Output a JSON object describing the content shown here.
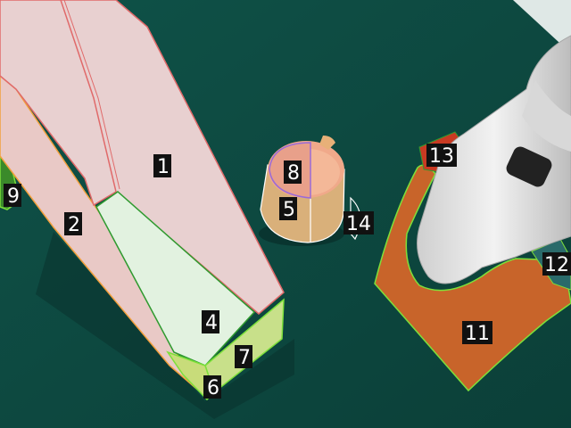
{
  "scene": {
    "description_colors": {
      "table": "#0e4a42",
      "tray": "#e8cfcf",
      "tray_outline": "#e06a6a",
      "tray_side_outline": "#f2a03c",
      "tray_inner": "#dff0dc",
      "inner_outline": "#2f9a2f",
      "tray_base": "#c8e08a",
      "mug": "#d9a67a",
      "mug_outline": "#9a6ad8",
      "stand": "#c8662a",
      "stand_outline": "#7de03a",
      "robot": "#e6e6e6"
    }
  },
  "labels": [
    {
      "id": "1",
      "text": "1"
    },
    {
      "id": "2",
      "text": "2"
    },
    {
      "id": "4",
      "text": "4"
    },
    {
      "id": "5",
      "text": "5"
    },
    {
      "id": "6",
      "text": "6"
    },
    {
      "id": "7",
      "text": "7"
    },
    {
      "id": "8",
      "text": "8"
    },
    {
      "id": "9",
      "text": "9"
    },
    {
      "id": "11",
      "text": "11"
    },
    {
      "id": "12",
      "text": "12"
    },
    {
      "id": "13",
      "text": "13"
    },
    {
      "id": "14",
      "text": "14"
    }
  ]
}
